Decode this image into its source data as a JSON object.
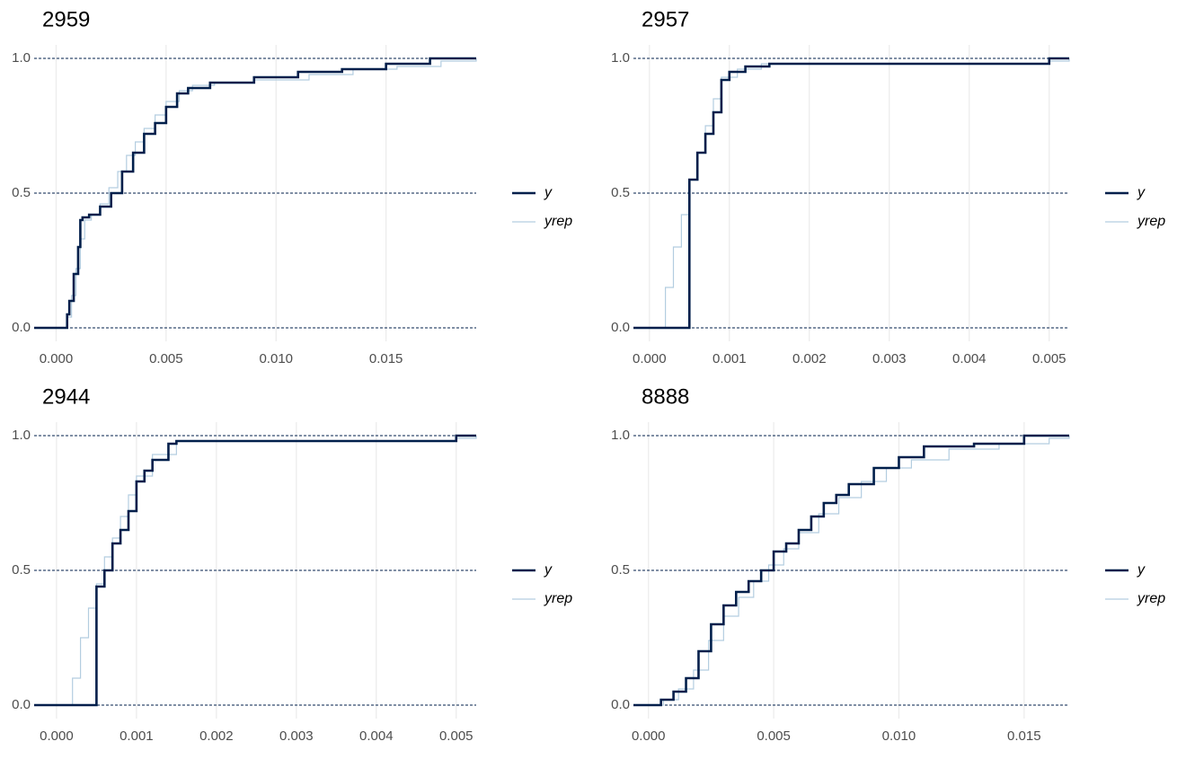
{
  "chart_data": [
    {
      "type": "line",
      "step": true,
      "title": "2959",
      "xlim": [
        -0.001,
        0.0191
      ],
      "ylim": [
        -0.05,
        1.05
      ],
      "xticks": [
        {
          "value": 0,
          "label": "0.000"
        },
        {
          "value": 0.005,
          "label": "0.005"
        },
        {
          "value": 0.01,
          "label": "0.010"
        },
        {
          "value": 0.015,
          "label": "0.015"
        }
      ],
      "yticks": [
        {
          "value": 0,
          "label": "0.0"
        },
        0.5,
        {
          "value": 1,
          "label": "1.0"
        }
      ],
      "series": [
        {
          "name": "y",
          "color": "#011f4b",
          "x": [
            -0.001,
            0.0005,
            0.0006,
            0.0008,
            0.001,
            0.0011,
            0.0012,
            0.0015,
            0.002,
            0.0025,
            0.003,
            0.0035,
            0.004,
            0.0045,
            0.005,
            0.0055,
            0.006,
            0.007,
            0.009,
            0.011,
            0.013,
            0.015,
            0.017,
            0.0191
          ],
          "values": [
            0,
            0.05,
            0.1,
            0.2,
            0.3,
            0.4,
            0.41,
            0.42,
            0.45,
            0.5,
            0.58,
            0.65,
            0.72,
            0.76,
            0.82,
            0.87,
            0.89,
            0.91,
            0.93,
            0.95,
            0.96,
            0.98,
            1.0,
            1.0
          ]
        },
        {
          "name": "yrep",
          "color": "#b3cde0",
          "x": [
            -0.001,
            0.0005,
            0.0007,
            0.0009,
            0.0011,
            0.0013,
            0.0016,
            0.002,
            0.0024,
            0.0028,
            0.0032,
            0.0036,
            0.004,
            0.0045,
            0.005,
            0.0056,
            0.0062,
            0.0072,
            0.009,
            0.0115,
            0.0135,
            0.0155,
            0.0175,
            0.0191
          ],
          "values": [
            0,
            0.04,
            0.12,
            0.22,
            0.33,
            0.4,
            0.42,
            0.46,
            0.52,
            0.58,
            0.64,
            0.69,
            0.74,
            0.79,
            0.84,
            0.88,
            0.9,
            0.91,
            0.92,
            0.94,
            0.96,
            0.97,
            0.99,
            1.0
          ]
        }
      ]
    },
    {
      "type": "line",
      "step": true,
      "title": "2957",
      "xlim": [
        -0.0002,
        0.00525
      ],
      "ylim": [
        -0.05,
        1.05
      ],
      "xticks": [
        {
          "value": 0,
          "label": "0.000"
        },
        {
          "value": 0.001,
          "label": "0.001"
        },
        {
          "value": 0.002,
          "label": "0.002"
        },
        {
          "value": 0.003,
          "label": "0.003"
        },
        {
          "value": 0.004,
          "label": "0.004"
        },
        {
          "value": 0.005,
          "label": "0.005"
        }
      ],
      "yticks": [
        {
          "value": 0,
          "label": "0.0"
        },
        0.5,
        {
          "value": 1,
          "label": "1.0"
        }
      ],
      "series": [
        {
          "name": "y",
          "color": "#011f4b",
          "x": [
            -0.0002,
            0.0005,
            0.0005,
            0.0006,
            0.0007,
            0.0008,
            0.0009,
            0.001,
            0.0012,
            0.0015,
            0.005,
            0.00525
          ],
          "values": [
            0,
            0,
            0.55,
            0.65,
            0.72,
            0.8,
            0.92,
            0.95,
            0.97,
            0.98,
            1.0,
            1.0
          ]
        },
        {
          "name": "yrep",
          "color": "#b3cde0",
          "x": [
            -0.0002,
            0.0001,
            0.0002,
            0.0003,
            0.0004,
            0.0005,
            0.0006,
            0.0007,
            0.0008,
            0.0009,
            0.0011,
            0.0014,
            0.005,
            0.00525
          ],
          "values": [
            0,
            0,
            0.15,
            0.3,
            0.42,
            0.55,
            0.65,
            0.75,
            0.85,
            0.93,
            0.96,
            0.98,
            0.99,
            1.0
          ]
        }
      ]
    },
    {
      "type": "line",
      "step": true,
      "title": "2944",
      "xlim": [
        -0.00028,
        0.00525
      ],
      "ylim": [
        -0.05,
        1.05
      ],
      "xticks": [
        {
          "value": 0,
          "label": "0.000"
        },
        {
          "value": 0.001,
          "label": "0.001"
        },
        {
          "value": 0.002,
          "label": "0.002"
        },
        {
          "value": 0.003,
          "label": "0.003"
        },
        {
          "value": 0.004,
          "label": "0.004"
        },
        {
          "value": 0.005,
          "label": "0.005"
        }
      ],
      "yticks": [
        {
          "value": 0,
          "label": "0.0"
        },
        0.5,
        {
          "value": 1,
          "label": "1.0"
        }
      ],
      "series": [
        {
          "name": "y",
          "color": "#011f4b",
          "x": [
            -0.00028,
            0.0005,
            0.0005,
            0.0006,
            0.0007,
            0.0008,
            0.0009,
            0.001,
            0.0011,
            0.0012,
            0.0014,
            0.0015,
            0.005,
            0.00525
          ],
          "values": [
            0,
            0,
            0.44,
            0.5,
            0.6,
            0.65,
            0.72,
            0.83,
            0.87,
            0.91,
            0.97,
            0.98,
            1.0,
            1.0
          ]
        },
        {
          "name": "yrep",
          "color": "#b3cde0",
          "x": [
            -0.00028,
            0.00015,
            0.0002,
            0.0003,
            0.0004,
            0.0005,
            0.0006,
            0.0007,
            0.0008,
            0.0009,
            0.001,
            0.0012,
            0.0015,
            0.005,
            0.00525
          ],
          "values": [
            0,
            0,
            0.1,
            0.25,
            0.36,
            0.45,
            0.55,
            0.62,
            0.7,
            0.78,
            0.85,
            0.93,
            0.98,
            0.99,
            1.0
          ]
        }
      ]
    },
    {
      "type": "line",
      "step": true,
      "title": "8888",
      "xlim": [
        -0.0006,
        0.0168
      ],
      "ylim": [
        -0.05,
        1.05
      ],
      "xticks": [
        {
          "value": 0,
          "label": "0.000"
        },
        {
          "value": 0.005,
          "label": "0.005"
        },
        {
          "value": 0.01,
          "label": "0.010"
        },
        {
          "value": 0.015,
          "label": "0.015"
        }
      ],
      "yticks": [
        {
          "value": 0,
          "label": "0.0"
        },
        0.5,
        {
          "value": 1,
          "label": "1.0"
        }
      ],
      "series": [
        {
          "name": "y",
          "color": "#011f4b",
          "x": [
            -0.0006,
            0.0005,
            0.001,
            0.0015,
            0.002,
            0.0025,
            0.003,
            0.0035,
            0.004,
            0.0045,
            0.005,
            0.0055,
            0.006,
            0.0065,
            0.007,
            0.0075,
            0.008,
            0.009,
            0.01,
            0.011,
            0.013,
            0.015,
            0.0168
          ],
          "values": [
            0,
            0.02,
            0.05,
            0.1,
            0.2,
            0.3,
            0.37,
            0.42,
            0.46,
            0.5,
            0.57,
            0.6,
            0.65,
            0.7,
            0.75,
            0.78,
            0.82,
            0.88,
            0.92,
            0.96,
            0.97,
            1.0,
            1.0
          ]
        },
        {
          "name": "yrep",
          "color": "#b3cde0",
          "x": [
            -0.0006,
            0.0006,
            0.0012,
            0.0018,
            0.0024,
            0.003,
            0.0036,
            0.0042,
            0.0048,
            0.0054,
            0.006,
            0.0068,
            0.0076,
            0.0085,
            0.0095,
            0.0105,
            0.012,
            0.014,
            0.016,
            0.0168
          ],
          "values": [
            0,
            0.02,
            0.06,
            0.13,
            0.24,
            0.33,
            0.4,
            0.46,
            0.52,
            0.58,
            0.64,
            0.71,
            0.77,
            0.83,
            0.88,
            0.91,
            0.95,
            0.97,
            0.99,
            1.0
          ]
        }
      ]
    }
  ]
}
